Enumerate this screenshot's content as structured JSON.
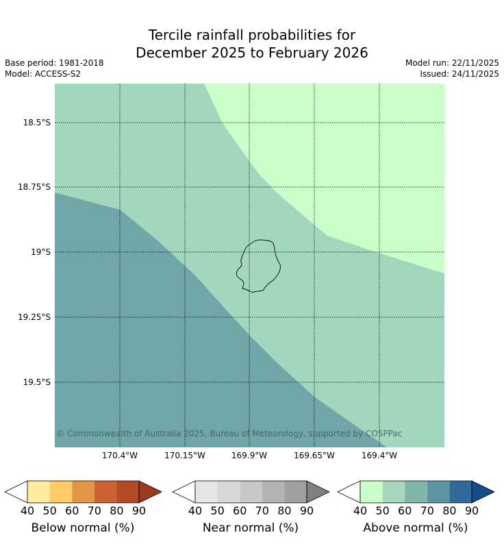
{
  "title_line1": "Tercile rainfall probabilities for",
  "title_line2": "December 2025 to February 2026",
  "base_period": "Base period: 1981-2018",
  "model": "Model: ACCESS-S2",
  "model_run": "Model run: 22/11/2025",
  "issued": "Issued: 24/11/2025",
  "lat_labels": [
    "18.5°S",
    "18.75°S",
    "19°S",
    "19.25°S",
    "19.5°S"
  ],
  "lon_labels": [
    "170.4°W",
    "170.15°W",
    "169.9°W",
    "169.65°W",
    "169.4°W"
  ],
  "copyright": "© Commonwealth of Australia 2025, Bureau of Meteorology, supported by COSPPac",
  "colors": {
    "above_50_60": "#a2d6bd",
    "above_40_50": "#caffca",
    "above_60_70": "#71a6a8"
  },
  "colorbars": {
    "below": {
      "label": "Below normal (%)",
      "ticks": [
        "40",
        "50",
        "60",
        "70",
        "80",
        "90"
      ],
      "colors": [
        "#ffffff",
        "#ffec9e",
        "#fdcc66",
        "#e39646",
        "#cc6232",
        "#b24a26",
        "#9a3820"
      ]
    },
    "near": {
      "label": "Near normal (%)",
      "ticks": [
        "40",
        "50",
        "60",
        "70",
        "80",
        "90"
      ],
      "colors": [
        "#ffffff",
        "#e6e6e6",
        "#d9d9d9",
        "#c8c8c8",
        "#b3b3b3",
        "#a0a0a0",
        "#808080"
      ]
    },
    "above": {
      "label": "Above normal (%)",
      "ticks": [
        "40",
        "50",
        "60",
        "70",
        "80",
        "90"
      ],
      "colors": [
        "#ffffff",
        "#caffca",
        "#a6d7bc",
        "#82b5aa",
        "#5c95a0",
        "#336a9c",
        "#144c8c"
      ]
    }
  }
}
